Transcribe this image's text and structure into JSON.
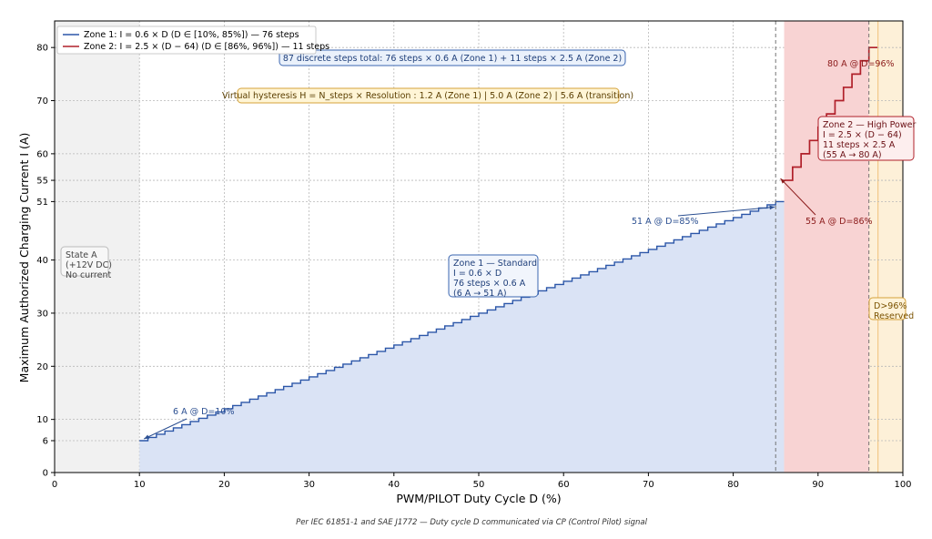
{
  "chart_data": {
    "type": "line",
    "xlabel": "PWM/PILOT Duty Cycle D (%)",
    "ylabel": "Maximum Authorized Charging Current I (A)",
    "xlim": [
      0,
      100
    ],
    "ylim": [
      0,
      85
    ],
    "x_ticks": [
      0,
      10,
      20,
      30,
      40,
      50,
      60,
      70,
      80,
      90,
      100
    ],
    "y_ticks": [
      0,
      6,
      10,
      20,
      30,
      40,
      51,
      55,
      60,
      70,
      80
    ],
    "grid": true,
    "legend_position": "top-left",
    "colors": {
      "zone1": "#2b56a8",
      "zone2": "#b0202a",
      "zone1_fill": "#dae3f5",
      "zone2_fill": "#f8d3d3",
      "reserved_fill": "#fdf0d8",
      "statea_fill": "#f1f1f1"
    },
    "series": [
      {
        "name": "Zone 1: I = 0.6 × D  (D ∈ [10%, 85%]) — 76 steps",
        "color": "#2b56a8",
        "step": 0.6,
        "x_start": 10,
        "x_end": 86,
        "y_start": 6,
        "y_end": 51
      },
      {
        "name": "Zone 2: I = 2.5 × (D − 64)  (D ∈ [86%, 96%]) — 11 steps",
        "color": "#b0202a",
        "step": 2.5,
        "x_start": 86,
        "x_end": 97,
        "y_start": 55,
        "y_end": 80
      }
    ],
    "vertical_lines": [
      85,
      96
    ],
    "annotations": {
      "total_steps": "87 discrete steps total:  76 steps × 0.6 A (Zone 1)  +  11 steps × 2.5 A (Zone 2)",
      "hysteresis": "Virtual hysteresis  H = N_steps × Resolution :  1.2 A (Zone 1)  |  5.0 A (Zone 2)  |  5.6 A (transition)",
      "state_a": [
        "State A",
        "(+12V DC)",
        "No current"
      ],
      "zone1_box": [
        "Zone 1 — Standard",
        "I = 0.6 × D",
        "76 steps × 0.6 A",
        "(6 A → 51 A)"
      ],
      "zone2_box": [
        "Zone 2 — High Power",
        "I = 2.5 × (D − 64)",
        "11 steps × 2.5 A",
        "(55 A → 80 A)"
      ],
      "reserved": [
        "D>96%",
        "Reserved"
      ],
      "point_6a": "6 A @ D=10%",
      "point_51a": "51 A @ D=85%",
      "point_55a": "55 A @ D=86%",
      "point_80a": "80 A @ D=96%"
    },
    "caption": "Per IEC 61851-1 and SAE J1772 — Duty cycle D communicated via CP (Control Pilot) signal"
  }
}
